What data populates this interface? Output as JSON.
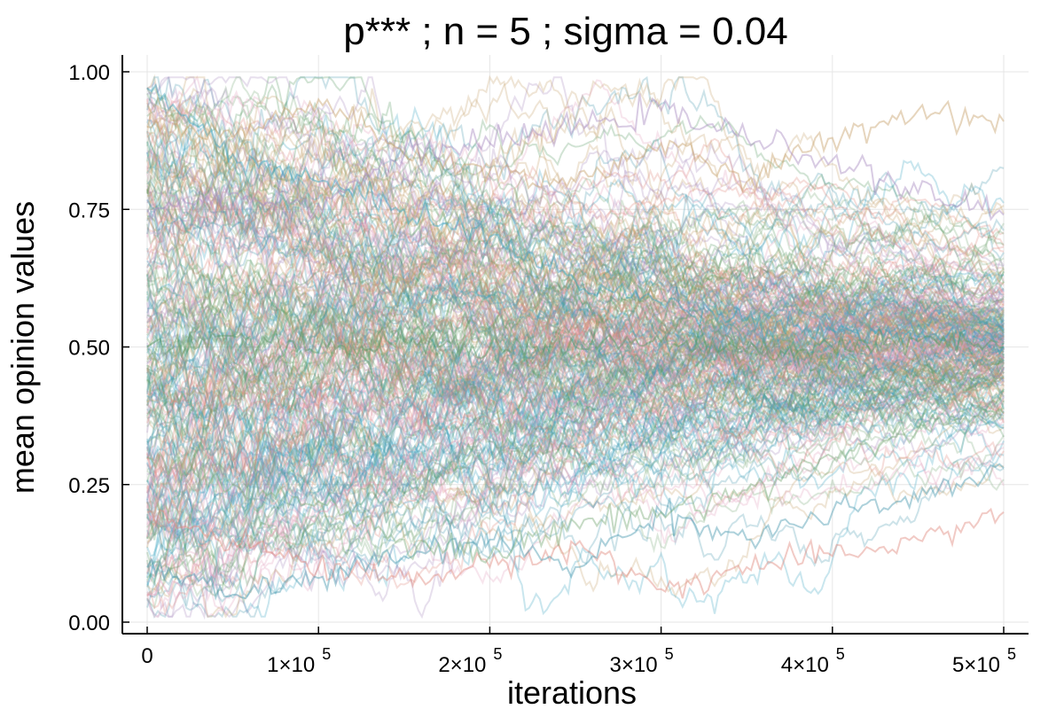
{
  "chart_data": {
    "type": "line",
    "title": "p***  ; n = 5 ; sigma = 0.04",
    "xlabel": "iterations",
    "ylabel": "mean opinion values",
    "xlim": [
      0,
      500000
    ],
    "ylim": [
      0.0,
      1.0
    ],
    "grid": true,
    "legend": "none",
    "x_ticks": [
      {
        "value": 0,
        "label": "0",
        "exp": ""
      },
      {
        "value": 100000,
        "label": "1×10",
        "exp": "5"
      },
      {
        "value": 200000,
        "label": "2×10",
        "exp": "5"
      },
      {
        "value": 300000,
        "label": "3×10",
        "exp": "5"
      },
      {
        "value": 400000,
        "label": "4×10",
        "exp": "5"
      },
      {
        "value": 500000,
        "label": "5×10",
        "exp": "5"
      }
    ],
    "y_ticks": [
      {
        "value": 0.0,
        "label": "0.00"
      },
      {
        "value": 0.25,
        "label": "0.25"
      },
      {
        "value": 0.5,
        "label": "0.50"
      },
      {
        "value": 0.75,
        "label": "0.75"
      },
      {
        "value": 1.0,
        "label": "1.00"
      }
    ],
    "series_colors": [
      "#3da4c2",
      "#e3a2bd",
      "#5b9a63",
      "#c7a16c",
      "#a98cc0",
      "#e08a7e",
      "#4a9ab0",
      "#7fae7c"
    ],
    "series": [
      {
        "x": [
          0,
          50000,
          100000,
          150000,
          200000,
          250000,
          300000,
          350000,
          400000,
          450000,
          500000
        ],
        "values": [
          0.97,
          0.85,
          0.8,
          0.75,
          0.7,
          0.62,
          0.58,
          0.55,
          0.53,
          0.52,
          0.5
        ]
      },
      {
        "x": [
          0,
          50000,
          100000,
          150000,
          200000,
          250000,
          300000,
          350000,
          400000,
          450000,
          500000
        ],
        "values": [
          0.05,
          0.12,
          0.2,
          0.28,
          0.35,
          0.4,
          0.44,
          0.47,
          0.49,
          0.5,
          0.51
        ]
      },
      {
        "x": [
          0,
          50000,
          100000,
          150000,
          200000,
          250000,
          300000,
          350000,
          400000,
          450000,
          500000
        ],
        "values": [
          0.5,
          0.52,
          0.49,
          0.51,
          0.5,
          0.5,
          0.51,
          0.49,
          0.5,
          0.51,
          0.5
        ]
      },
      {
        "x": [
          0,
          50000,
          100000,
          150000,
          200000,
          250000,
          300000,
          350000,
          400000,
          450000,
          500000
        ],
        "values": [
          0.9,
          0.88,
          0.95,
          0.85,
          0.82,
          0.8,
          0.87,
          0.8,
          0.88,
          0.93,
          0.91
        ]
      },
      {
        "x": [
          0,
          50000,
          100000,
          150000,
          200000,
          250000,
          300000,
          350000,
          400000,
          450000,
          500000
        ],
        "values": [
          0.75,
          0.78,
          0.76,
          0.85,
          0.87,
          0.9,
          0.93,
          0.88,
          0.84,
          0.78,
          0.74
        ]
      },
      {
        "x": [
          0,
          50000,
          100000,
          150000,
          200000,
          250000,
          300000,
          350000,
          400000,
          450000,
          500000
        ],
        "values": [
          0.2,
          0.15,
          0.1,
          0.08,
          0.1,
          0.14,
          0.06,
          0.1,
          0.12,
          0.15,
          0.2
        ]
      },
      {
        "x": [
          0,
          50000,
          100000,
          150000,
          200000,
          250000,
          300000,
          350000,
          400000,
          450000,
          500000
        ],
        "values": [
          0.1,
          0.05,
          0.08,
          0.12,
          0.15,
          0.1,
          0.2,
          0.15,
          0.2,
          0.22,
          0.28
        ]
      },
      {
        "x": [
          0,
          50000,
          100000,
          150000,
          200000,
          250000,
          300000,
          350000,
          400000,
          450000,
          500000
        ],
        "values": [
          0.3,
          0.25,
          0.22,
          0.15,
          0.12,
          0.18,
          0.2,
          0.24,
          0.3,
          0.35,
          0.38
        ]
      }
    ]
  }
}
